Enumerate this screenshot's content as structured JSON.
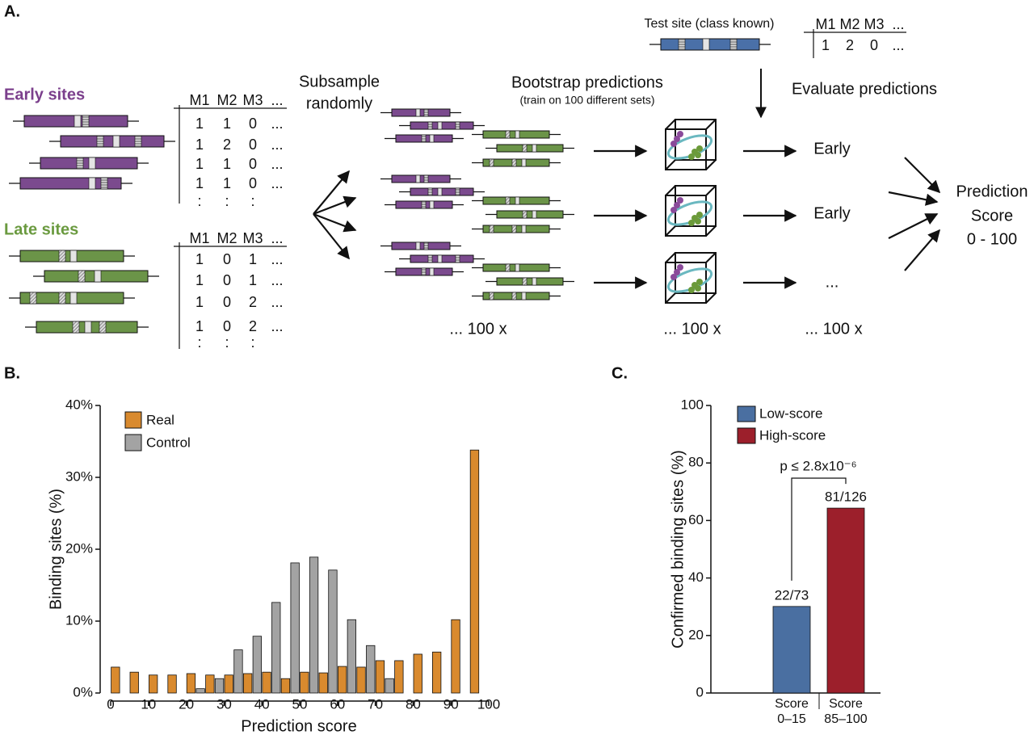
{
  "panel_labels": [
    "A.",
    "B.",
    "C."
  ],
  "panel_a": {
    "early_label": "Early sites",
    "late_label": "Late sites",
    "early_table": {
      "header": [
        "M1",
        "M2",
        "M3",
        "..."
      ],
      "rows": [
        [
          "1",
          "1",
          "0",
          "..."
        ],
        [
          "1",
          "2",
          "0",
          "..."
        ],
        [
          "1",
          "1",
          "0",
          "..."
        ],
        [
          "1",
          "1",
          "0",
          "..."
        ],
        [
          ":",
          ":",
          ":"
        ]
      ]
    },
    "late_table": {
      "header": [
        "M1",
        "M2",
        "M3",
        "..."
      ],
      "rows": [
        [
          "1",
          "0",
          "1",
          "..."
        ],
        [
          "1",
          "0",
          "1",
          "..."
        ],
        [
          "1",
          "0",
          "2",
          "..."
        ],
        [
          "1",
          "0",
          "2",
          "..."
        ],
        [
          ":",
          ":",
          ":"
        ]
      ]
    },
    "subsample": [
      "Subsample",
      "randomly"
    ],
    "bootstrap_title": "Bootstrap predictions",
    "bootstrap_subtitle": "(train on 100 different sets)",
    "test_site": "Test site (class known)",
    "test_table": {
      "header": [
        "M1",
        "M2",
        "M3",
        "..."
      ],
      "rows": [
        [
          "1",
          "2",
          "0",
          "..."
        ]
      ]
    },
    "evaluate": "Evaluate predictions",
    "outcomes": [
      "Early",
      "Early",
      "..."
    ],
    "repeats": [
      "... 100 x",
      "... 100 x",
      "... 100 x"
    ],
    "score": [
      "Prediction",
      "Score",
      "0 - 100"
    ]
  },
  "chart_data": [
    {
      "type": "histogram",
      "xlabel": "Prediction score",
      "ylabel": "Binding sites (%)",
      "bins": [
        0,
        5,
        10,
        15,
        20,
        25,
        30,
        35,
        40,
        45,
        50,
        55,
        60,
        65,
        70,
        75,
        80,
        85,
        90,
        95,
        100
      ],
      "series": [
        {
          "name": "Real",
          "color": "#d98a2e",
          "values": [
            3.6,
            2.9,
            2.5,
            2.5,
            2.7,
            2.5,
            2.5,
            2.7,
            2.9,
            2.0,
            2.9,
            2.8,
            3.7,
            3.6,
            4.5,
            4.5,
            5.4,
            5.7,
            10.2,
            33.8
          ]
        },
        {
          "name": "Control",
          "color": "#a3a3a3",
          "values": [
            0,
            0,
            0,
            0,
            0.6,
            2.0,
            6.0,
            7.9,
            12.6,
            18.1,
            18.9,
            17.1,
            10.2,
            6.6,
            2.0,
            0,
            0,
            0,
            0,
            0
          ]
        }
      ],
      "xlim": [
        0,
        100
      ],
      "xticks": [
        0,
        10,
        20,
        30,
        40,
        50,
        60,
        70,
        80,
        90,
        100
      ],
      "ylim": [
        0,
        40
      ],
      "yticks": [
        {
          "value": 0,
          "label": "0%"
        },
        {
          "value": 10,
          "label": "10%"
        },
        {
          "value": 20,
          "label": "20%"
        },
        {
          "value": 30,
          "label": "30%"
        },
        {
          "value": 40,
          "label": "40%"
        }
      ],
      "legend": "upper left"
    },
    {
      "type": "bar",
      "ylabel": "Confirmed binding sites (%)",
      "categories": [
        "Score 0–15",
        "Score 85–100"
      ],
      "series": [
        {
          "name": "Low-score",
          "color": "#4a6fa1",
          "values": [
            30.1,
            null
          ],
          "value_labels": [
            "22/73",
            null
          ]
        },
        {
          "name": "High-score",
          "color": "#9c1f2b",
          "values": [
            null,
            64.3
          ],
          "value_labels": [
            null,
            "81/126"
          ]
        }
      ],
      "ylim": [
        0,
        100
      ],
      "yticks": [
        0,
        20,
        40,
        60,
        80,
        100
      ],
      "annotations": [
        "p ≤ 2.8x10⁻⁶"
      ],
      "legend": "upper left"
    }
  ]
}
